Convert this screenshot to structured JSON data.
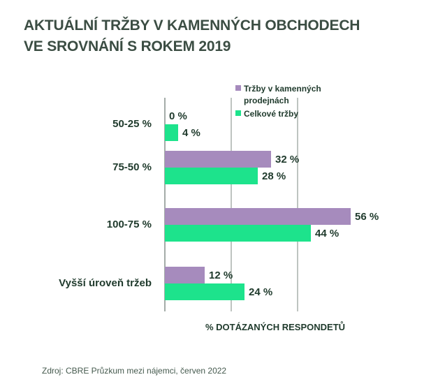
{
  "title_lines": [
    "AKTUÁLNÍ TRŽBY V KAMENNÝCH OBCHODECH",
    "VE SROVNÁNÍ S ROKEM 2019"
  ],
  "source": "Zdroj: CBRE Průzkum mezi nájemci, červen 2022",
  "chart_data": {
    "type": "bar",
    "orientation": "horizontal",
    "categories": [
      "50-25 %",
      "75-50 %",
      "100-75 %",
      "Vyšší úroveň tržeb"
    ],
    "series": [
      {
        "name": "Tržby v kamenných prodejnách",
        "values": [
          0,
          32,
          56,
          12
        ],
        "labels": [
          "0 %",
          "32 %",
          "56 %",
          "12 %"
        ],
        "color": "#a68bbd"
      },
      {
        "name": "Celkové tržby",
        "values": [
          4,
          28,
          44,
          24
        ],
        "labels": [
          "4 %",
          "28 %",
          "44 %",
          "24 %"
        ],
        "color": "#1de38c"
      }
    ],
    "xlabel": "% DOTÁZANÝCH RESPONDETŮ",
    "ylabel": "",
    "xlim": [
      0,
      60
    ],
    "gridlines": [
      0,
      20,
      40
    ],
    "grid": true,
    "legend_position": "top-right"
  }
}
